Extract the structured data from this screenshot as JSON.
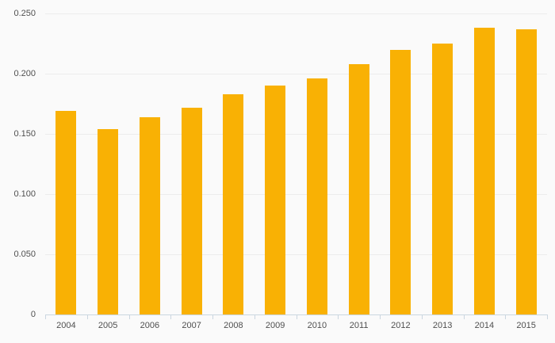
{
  "chart_data": {
    "type": "bar",
    "title": "",
    "xlabel": "",
    "ylabel": "",
    "categories": [
      "2004",
      "2005",
      "2006",
      "2007",
      "2008",
      "2009",
      "2010",
      "2011",
      "2012",
      "2013",
      "2014",
      "2015"
    ],
    "values": [
      0.169,
      0.154,
      0.164,
      0.172,
      0.183,
      0.19,
      0.196,
      0.208,
      0.22,
      0.225,
      0.238,
      0.237
    ],
    "ylim": [
      0,
      0.25
    ],
    "y_tick_values": [
      0,
      0.05,
      0.1,
      0.15,
      0.2,
      0.25
    ],
    "y_tick_labels": [
      "0",
      "0.050",
      "0.100",
      "0.150",
      "0.200",
      "0.250"
    ],
    "grid": true,
    "legend": "none",
    "colors": {
      "bar": "#F9B104",
      "background": "#FAFAFA",
      "gridline": "#ECECEC",
      "axis_line": "#CBD6E0",
      "tick": "#CBD6E0",
      "label_text": "#4F4F4F"
    }
  }
}
